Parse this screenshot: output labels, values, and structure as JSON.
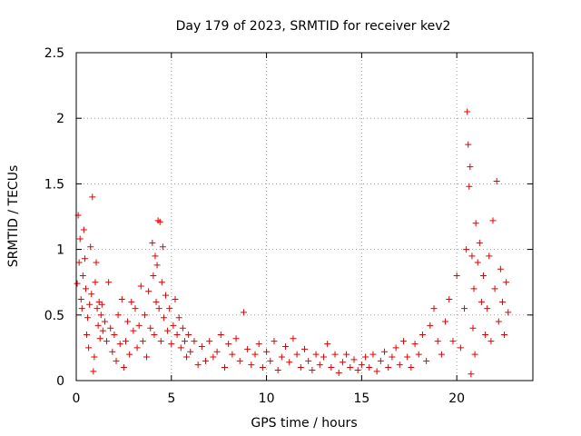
{
  "chart_data": {
    "type": "scatter",
    "title": "Day 179 of 2023, SRMTID for receiver kev2",
    "xlabel": "GPS time / hours",
    "ylabel": "SRMTID / TECUs",
    "xlim": [
      0,
      24
    ],
    "ylim": [
      0,
      2.5
    ],
    "xticks": [
      0,
      5,
      10,
      15,
      20
    ],
    "xtick_labels": [
      "0",
      "5",
      "10",
      "15",
      "20"
    ],
    "yticks": [
      0,
      0.5,
      1,
      1.5,
      2,
      2.5
    ],
    "ytick_labels": [
      "0",
      "0.5",
      "1",
      "1.5",
      "2",
      "2.5"
    ],
    "grid": true,
    "marker": "+",
    "series": [
      {
        "name": "SRMTID",
        "color": "#e00000",
        "points": [
          [
            0.05,
            0.74
          ],
          [
            0.1,
            1.26
          ],
          [
            0.15,
            0.9
          ],
          [
            0.2,
            1.08
          ],
          [
            0.25,
            0.62
          ],
          [
            0.3,
            0.55
          ],
          [
            0.35,
            0.8
          ],
          [
            0.4,
            1.15
          ],
          [
            0.45,
            0.93
          ],
          [
            0.5,
            0.7
          ],
          [
            0.55,
            0.35
          ],
          [
            0.6,
            0.48
          ],
          [
            0.65,
            0.25
          ],
          [
            0.7,
            0.58
          ],
          [
            0.75,
            1.02
          ],
          [
            0.8,
            0.66
          ],
          [
            0.85,
            1.4
          ],
          [
            0.9,
            0.07
          ],
          [
            0.95,
            0.18
          ],
          [
            1.0,
            0.75
          ],
          [
            1.05,
            0.9
          ],
          [
            1.1,
            0.55
          ],
          [
            1.15,
            0.42
          ],
          [
            1.2,
            0.6
          ],
          [
            1.25,
            0.32
          ],
          [
            1.3,
            0.5
          ],
          [
            1.35,
            0.58
          ],
          [
            1.4,
            0.38
          ],
          [
            1.5,
            0.45
          ],
          [
            1.6,
            0.3
          ],
          [
            1.7,
            0.75
          ],
          [
            1.8,
            0.4
          ],
          [
            1.9,
            0.22
          ],
          [
            2.0,
            0.35
          ],
          [
            2.1,
            0.15
          ],
          [
            2.2,
            0.5
          ],
          [
            2.3,
            0.28
          ],
          [
            2.4,
            0.62
          ],
          [
            2.5,
            0.1
          ],
          [
            2.6,
            0.3
          ],
          [
            2.7,
            0.45
          ],
          [
            2.8,
            0.2
          ],
          [
            2.9,
            0.6
          ],
          [
            3.0,
            0.38
          ],
          [
            3.1,
            0.55
          ],
          [
            3.2,
            0.25
          ],
          [
            3.3,
            0.42
          ],
          [
            3.4,
            0.72
          ],
          [
            3.5,
            0.3
          ],
          [
            3.6,
            0.5
          ],
          [
            3.7,
            0.18
          ],
          [
            3.8,
            0.68
          ],
          [
            3.9,
            0.4
          ],
          [
            4.0,
            1.05
          ],
          [
            4.05,
            0.8
          ],
          [
            4.1,
            0.35
          ],
          [
            4.15,
            0.95
          ],
          [
            4.2,
            0.6
          ],
          [
            4.25,
            0.88
          ],
          [
            4.3,
            1.22
          ],
          [
            4.35,
            0.55
          ],
          [
            4.4,
            1.21
          ],
          [
            4.45,
            0.3
          ],
          [
            4.5,
            0.75
          ],
          [
            4.55,
            1.02
          ],
          [
            4.6,
            0.48
          ],
          [
            4.7,
            0.65
          ],
          [
            4.8,
            0.38
          ],
          [
            4.9,
            0.55
          ],
          [
            5.0,
            0.28
          ],
          [
            5.1,
            0.42
          ],
          [
            5.2,
            0.62
          ],
          [
            5.3,
            0.35
          ],
          [
            5.4,
            0.48
          ],
          [
            5.5,
            0.25
          ],
          [
            5.6,
            0.4
          ],
          [
            5.7,
            0.3
          ],
          [
            5.8,
            0.18
          ],
          [
            5.9,
            0.35
          ],
          [
            6.0,
            0.22
          ],
          [
            6.2,
            0.3
          ],
          [
            6.4,
            0.12
          ],
          [
            6.6,
            0.26
          ],
          [
            6.8,
            0.15
          ],
          [
            7.0,
            0.3
          ],
          [
            7.2,
            0.18
          ],
          [
            7.4,
            0.22
          ],
          [
            7.6,
            0.35
          ],
          [
            7.8,
            0.1
          ],
          [
            8.0,
            0.28
          ],
          [
            8.2,
            0.2
          ],
          [
            8.4,
            0.32
          ],
          [
            8.6,
            0.15
          ],
          [
            8.8,
            0.52
          ],
          [
            9.0,
            0.24
          ],
          [
            9.2,
            0.12
          ],
          [
            9.4,
            0.2
          ],
          [
            9.6,
            0.28
          ],
          [
            9.8,
            0.1
          ],
          [
            10.0,
            0.22
          ],
          [
            10.2,
            0.15
          ],
          [
            10.4,
            0.3
          ],
          [
            10.6,
            0.08
          ],
          [
            10.8,
            0.18
          ],
          [
            11.0,
            0.26
          ],
          [
            11.2,
            0.14
          ],
          [
            11.4,
            0.32
          ],
          [
            11.6,
            0.2
          ],
          [
            11.8,
            0.1
          ],
          [
            12.0,
            0.24
          ],
          [
            12.2,
            0.15
          ],
          [
            12.4,
            0.08
          ],
          [
            12.6,
            0.2
          ],
          [
            12.8,
            0.12
          ],
          [
            13.0,
            0.18
          ],
          [
            13.2,
            0.28
          ],
          [
            13.4,
            0.1
          ],
          [
            13.6,
            0.2
          ],
          [
            13.8,
            0.06
          ],
          [
            14.0,
            0.14
          ],
          [
            14.2,
            0.2
          ],
          [
            14.4,
            0.1
          ],
          [
            14.6,
            0.16
          ],
          [
            14.8,
            0.08
          ],
          [
            15.0,
            0.12
          ],
          [
            15.2,
            0.18
          ],
          [
            15.4,
            0.1
          ],
          [
            15.6,
            0.2
          ],
          [
            15.8,
            0.07
          ],
          [
            16.0,
            0.15
          ],
          [
            16.2,
            0.22
          ],
          [
            16.4,
            0.1
          ],
          [
            16.6,
            0.18
          ],
          [
            16.8,
            0.25
          ],
          [
            17.0,
            0.12
          ],
          [
            17.2,
            0.3
          ],
          [
            17.4,
            0.18
          ],
          [
            17.6,
            0.1
          ],
          [
            17.8,
            0.28
          ],
          [
            18.0,
            0.2
          ],
          [
            18.2,
            0.35
          ],
          [
            18.4,
            0.15
          ],
          [
            18.6,
            0.42
          ],
          [
            18.8,
            0.55
          ],
          [
            19.0,
            0.3
          ],
          [
            19.2,
            0.2
          ],
          [
            19.4,
            0.45
          ],
          [
            19.6,
            0.62
          ],
          [
            19.8,
            0.3
          ],
          [
            20.0,
            0.8
          ],
          [
            20.2,
            0.25
          ],
          [
            20.4,
            0.55
          ],
          [
            20.5,
            1.0
          ],
          [
            20.55,
            2.05
          ],
          [
            20.6,
            1.8
          ],
          [
            20.65,
            1.48
          ],
          [
            20.7,
            1.63
          ],
          [
            20.75,
            0.05
          ],
          [
            20.8,
            0.95
          ],
          [
            20.85,
            0.4
          ],
          [
            20.9,
            0.7
          ],
          [
            20.95,
            0.2
          ],
          [
            21.0,
            1.2
          ],
          [
            21.1,
            0.9
          ],
          [
            21.2,
            1.05
          ],
          [
            21.3,
            0.6
          ],
          [
            21.4,
            0.8
          ],
          [
            21.5,
            0.35
          ],
          [
            21.6,
            0.55
          ],
          [
            21.7,
            0.95
          ],
          [
            21.8,
            0.3
          ],
          [
            21.9,
            1.22
          ],
          [
            22.0,
            0.7
          ],
          [
            22.1,
            1.52
          ],
          [
            22.2,
            0.45
          ],
          [
            22.3,
            0.85
          ],
          [
            22.4,
            0.6
          ],
          [
            22.5,
            0.35
          ],
          [
            22.6,
            0.75
          ],
          [
            22.7,
            0.52
          ]
        ]
      }
    ]
  }
}
